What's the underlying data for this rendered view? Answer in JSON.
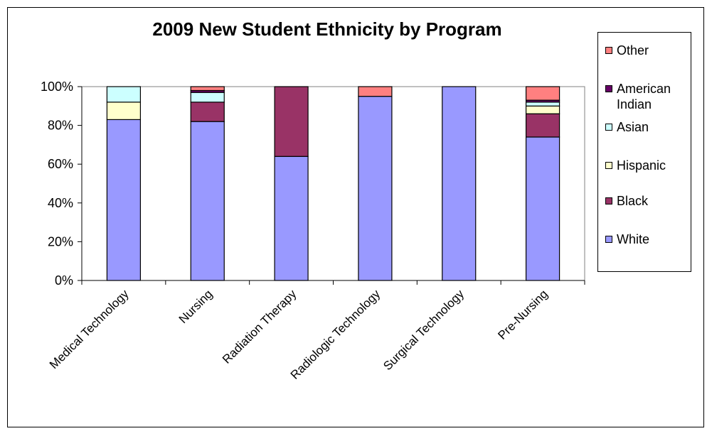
{
  "chart_data": {
    "type": "bar",
    "stacked": true,
    "title": "2009 New Student Ethnicity by Program",
    "xlabel": "",
    "ylabel": "",
    "ylim": [
      0,
      100
    ],
    "yticks": [
      "0%",
      "20%",
      "40%",
      "60%",
      "80%",
      "100%"
    ],
    "categories": [
      "Medical Technology",
      "Nursing",
      "Radiation Therapy",
      "Radiologic Technology",
      "Surgical Technology",
      "Pre-Nursing"
    ],
    "series": [
      {
        "name": "White",
        "color": "#9999ff",
        "values": [
          83,
          82,
          64,
          95,
          100,
          74
        ]
      },
      {
        "name": "Black",
        "color": "#993366",
        "values": [
          0,
          10,
          36,
          0,
          0,
          12
        ]
      },
      {
        "name": "Hispanic",
        "color": "#ffffcc",
        "values": [
          9,
          0,
          0,
          0,
          0,
          4
        ]
      },
      {
        "name": "Asian",
        "color": "#ccffff",
        "values": [
          8,
          5,
          0,
          0,
          0,
          2
        ]
      },
      {
        "name": "American Indian",
        "color": "#660066",
        "values": [
          0,
          1,
          0,
          0,
          0,
          1
        ]
      },
      {
        "name": "Other",
        "color": "#ff8080",
        "values": [
          0,
          2,
          0,
          5,
          0,
          7
        ]
      }
    ],
    "legend_position": "right",
    "grid": false
  }
}
